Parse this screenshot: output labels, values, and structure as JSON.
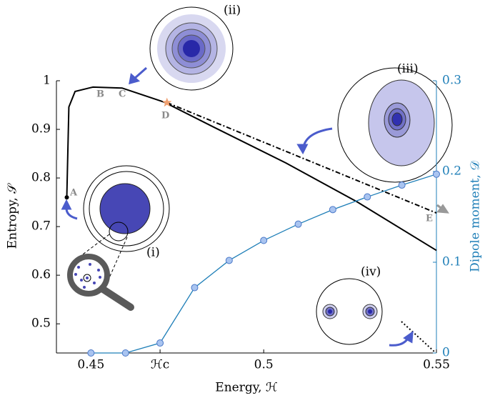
{
  "chart_data": {
    "type": "line",
    "x_label": "Energy, ℋ",
    "y_label": "Entropy, 𝒮",
    "y2_label": "Dipole moment, 𝒟",
    "xlim": [
      0.44,
      0.55
    ],
    "ylim": [
      0.44,
      1
    ],
    "y2lim": [
      0,
      0.3
    ],
    "xticks": [
      0.45,
      {
        "value": 0.47,
        "label": "ℋc"
      },
      0.5,
      0.55
    ],
    "yticks": [
      0.5,
      0.6,
      0.7,
      0.8,
      0.9,
      1
    ],
    "y2ticks": [
      0,
      0.1,
      0.2,
      0.3
    ],
    "series": [
      {
        "name": "entropy",
        "color": "#000000",
        "style": "solid",
        "x": [
          0.443,
          0.4436,
          0.4454,
          0.4506,
          0.459,
          0.4712,
          0.4857,
          0.5064,
          0.527,
          0.55
        ],
        "values": [
          0.76,
          0.946,
          0.978,
          0.987,
          0.985,
          0.956,
          0.904,
          0.831,
          0.751,
          0.651
        ]
      },
      {
        "name": "entropy-branch",
        "color": "#000000",
        "style": "dashdot",
        "x": [
          0.472,
          0.55
        ],
        "values": [
          0.955,
          0.728
        ]
      },
      {
        "name": "dipole",
        "color": "#1f7fb8",
        "style": "solid",
        "axis": "y2",
        "marker_color": "#a9c4f0",
        "x": [
          0.45,
          0.46,
          0.47,
          0.48,
          0.49,
          0.5,
          0.51,
          0.52,
          0.53,
          0.54,
          0.55
        ],
        "values": [
          0,
          0,
          0.011,
          0.072,
          0.102,
          0.124,
          0.142,
          0.158,
          0.172,
          0.185,
          0.197
        ]
      }
    ],
    "points": [
      {
        "label": "A",
        "x": 0.443,
        "y": 0.76
      },
      {
        "label": "D",
        "x": 0.472,
        "y": 0.955
      }
    ],
    "annotations": [
      "B",
      "C",
      "E",
      "(i)",
      "(ii)",
      "(iii)",
      "(iv)"
    ]
  }
}
